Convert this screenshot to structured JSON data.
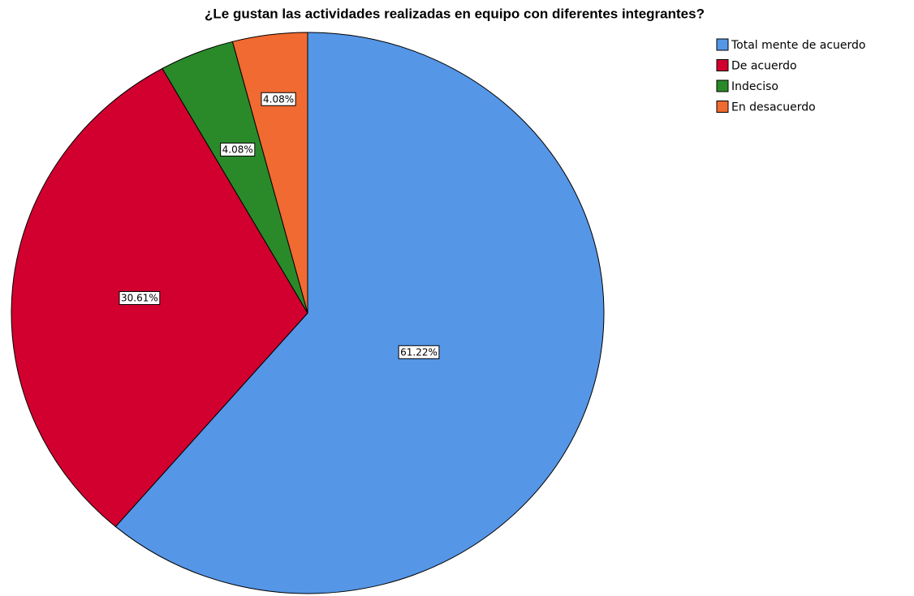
{
  "chart_data": {
    "type": "pie",
    "title": "¿Le gustan las actividades realizadas en equipo con diferentes integrantes?",
    "categories": [
      "Total mente de acuerdo",
      "De acuerdo",
      "Indeciso",
      "En desacuerdo"
    ],
    "values": [
      61.22,
      30.61,
      4.08,
      4.08
    ],
    "value_labels": [
      "61.22%",
      "30.61%",
      "4.08%",
      "4.08%"
    ],
    "colors": [
      "#5596e6",
      "#d1002f",
      "#2a8a2a",
      "#f06a31"
    ],
    "legend": "top-right"
  }
}
